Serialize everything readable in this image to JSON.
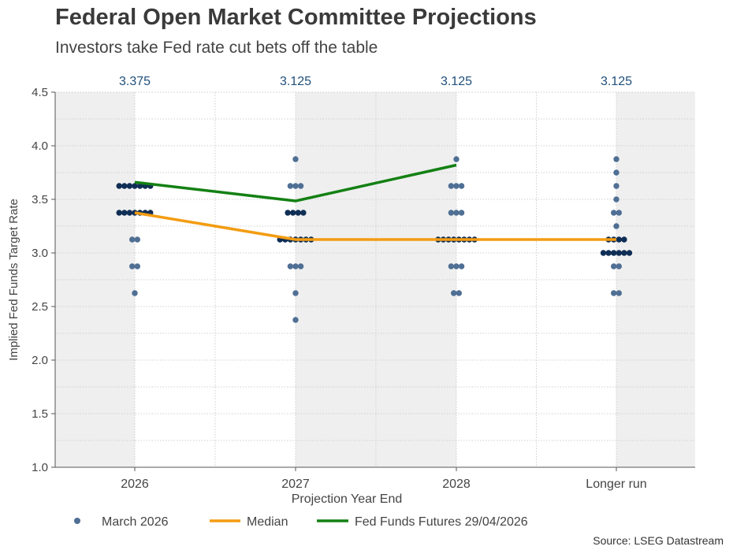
{
  "header": {
    "title": "Federal Open Market Committee Projections",
    "subtitle": "Investors take Fed rate cut bets off the table"
  },
  "source": "Source: LSEG Datastream",
  "colors": {
    "dots": "#4f6f94",
    "dots_dense": "#0f2e55",
    "median": "#f39c12",
    "futures": "#138013",
    "band": "#efefef",
    "top_label": "#1f4f7a"
  },
  "chart_data": {
    "type": "scatter",
    "title": "Federal Open Market Committee Projections",
    "xlabel": "Projection Year End",
    "ylabel": "Implied Fed Funds Target Rate",
    "ylim": [
      1.0,
      4.5
    ],
    "yticks": [
      "1.0",
      "1.5",
      "2.0",
      "2.5",
      "3.0",
      "3.5",
      "4.0",
      "4.5"
    ],
    "grid": true,
    "categories": [
      "2026",
      "2027",
      "2028",
      "Longer run"
    ],
    "median_labels": [
      "3.375",
      "3.125",
      "3.125",
      "3.125"
    ],
    "legend": {
      "placement": "bottom",
      "items": [
        "March 2026",
        "Median",
        "Fed Funds Futures 29/04/2026"
      ]
    },
    "dot_plot": [
      {
        "category": "2026",
        "rows": [
          {
            "rate": 3.625,
            "count": 7
          },
          {
            "rate": 3.375,
            "count": 7
          },
          {
            "rate": 3.125,
            "count": 2
          },
          {
            "rate": 2.875,
            "count": 2
          },
          {
            "rate": 2.625,
            "count": 1
          }
        ]
      },
      {
        "category": "2027",
        "rows": [
          {
            "rate": 3.875,
            "count": 1
          },
          {
            "rate": 3.625,
            "count": 3
          },
          {
            "rate": 3.375,
            "count": 4
          },
          {
            "rate": 3.125,
            "count": 7
          },
          {
            "rate": 2.875,
            "count": 3
          },
          {
            "rate": 2.625,
            "count": 1
          },
          {
            "rate": 2.375,
            "count": 1
          }
        ]
      },
      {
        "category": "2028",
        "rows": [
          {
            "rate": 3.875,
            "count": 1
          },
          {
            "rate": 3.625,
            "count": 3
          },
          {
            "rate": 3.375,
            "count": 3
          },
          {
            "rate": 3.125,
            "count": 8
          },
          {
            "rate": 2.875,
            "count": 3
          },
          {
            "rate": 2.625,
            "count": 2
          }
        ]
      },
      {
        "category": "Longer run",
        "rows": [
          {
            "rate": 3.875,
            "count": 1
          },
          {
            "rate": 3.75,
            "count": 1
          },
          {
            "rate": 3.625,
            "count": 1
          },
          {
            "rate": 3.5,
            "count": 1
          },
          {
            "rate": 3.375,
            "count": 2
          },
          {
            "rate": 3.25,
            "count": 1
          },
          {
            "rate": 3.125,
            "count": 4
          },
          {
            "rate": 3.0,
            "count": 6
          },
          {
            "rate": 2.875,
            "count": 2
          },
          {
            "rate": 2.625,
            "count": 2
          }
        ]
      }
    ],
    "series": [
      {
        "name": "Median",
        "x": [
          0,
          1,
          2,
          3
        ],
        "values": [
          3.375,
          3.125,
          3.125,
          3.125
        ]
      },
      {
        "name": "Fed Funds Futures 29/04/2026",
        "x": [
          0,
          1,
          2
        ],
        "values": [
          3.66,
          3.485,
          3.82
        ]
      }
    ]
  }
}
